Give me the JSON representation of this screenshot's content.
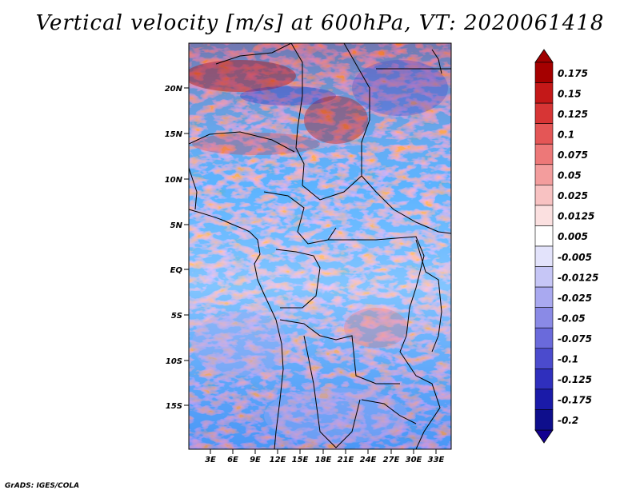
{
  "title": "Vertical velocity [m/s] at 600hPa, VT: 2020061418",
  "footer": "GrADS: IGES/COLA",
  "map": {
    "lat_range": [
      -20,
      25
    ],
    "lon_range": [
      0,
      36
    ],
    "lat_ticks": [
      "20N",
      "15N",
      "10N",
      "5N",
      "EQ",
      "5S",
      "10S",
      "15S"
    ],
    "lon_ticks": [
      "3E",
      "6E",
      "9E",
      "12E",
      "15E",
      "18E",
      "21E",
      "24E",
      "27E",
      "30E",
      "33E"
    ]
  },
  "colorbar": {
    "levels": [
      "0.175",
      "0.15",
      "0.125",
      "0.1",
      "0.075",
      "0.05",
      "0.025",
      "0.0125",
      "0.005",
      "-0.005",
      "-0.0125",
      "-0.025",
      "-0.05",
      "-0.075",
      "-0.1",
      "-0.125",
      "-0.175",
      "-0.2"
    ],
    "colors": [
      "#a50000",
      "#c41818",
      "#d73535",
      "#e45656",
      "#ed7878",
      "#f39d9d",
      "#f8c2c2",
      "#fbe0e0",
      "#ffffff",
      "#e3e3fb",
      "#c6c6f6",
      "#a9a9f0",
      "#8a8ae6",
      "#6a6adb",
      "#4b4bcd",
      "#2f2fbd",
      "#1a1aa8",
      "#0e0e8c"
    ],
    "top_color": "#a00000",
    "bottom_color": "#120090"
  },
  "colors": {
    "positive": "#c41818",
    "negative": "#2f2fbd",
    "background": "#ffffff"
  }
}
